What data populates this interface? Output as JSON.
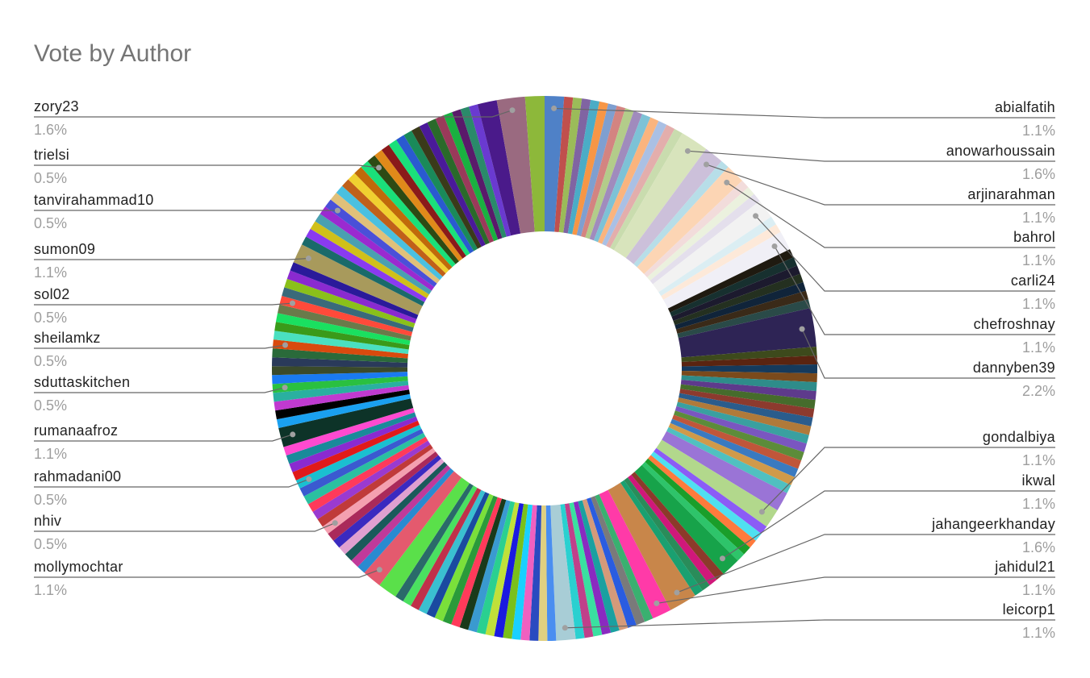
{
  "chart_data": {
    "type": "donut",
    "title": "Vote by Author",
    "categories": [
      "abialfatih",
      null,
      null,
      null,
      null,
      null,
      null,
      null,
      null,
      null,
      null,
      null,
      null,
      null,
      null,
      "anowarhoussain",
      "arjinarahman",
      null,
      "bahrol",
      null,
      null,
      null,
      "carli24",
      null,
      null,
      "chefroshnay",
      null,
      null,
      null,
      null,
      null,
      null,
      null,
      "dannyben39",
      null,
      null,
      null,
      null,
      null,
      null,
      null,
      null,
      null,
      null,
      null,
      null,
      null,
      null,
      null,
      null,
      null,
      null,
      "gondalbiya",
      null,
      null,
      null,
      null,
      null,
      "ikwal",
      null,
      null,
      null,
      null,
      "jahangeerkhanday",
      "jahidul21",
      null,
      null,
      null,
      null,
      null,
      null,
      null,
      null,
      null,
      "leicorp1",
      null,
      null,
      null,
      null,
      null,
      null,
      null,
      null,
      null,
      null,
      null,
      null,
      null,
      null,
      null,
      null,
      null,
      null,
      null,
      null,
      "mollymochtar",
      null,
      null,
      null,
      null,
      null,
      null,
      "nhiv",
      null,
      null,
      null,
      null,
      null,
      "rahmadani00",
      null,
      null,
      null,
      null,
      "rumanaafroz",
      null,
      null,
      null,
      null,
      "sduttaskitchen",
      null,
      null,
      null,
      null,
      "sheilamkz",
      null,
      null,
      null,
      null,
      "sol02",
      null,
      null,
      null,
      null,
      "sumon09",
      null,
      null,
      null,
      null,
      null,
      "tanvirahammad10",
      null,
      null,
      null,
      null,
      null,
      null,
      "trielsi",
      null,
      null,
      null,
      null,
      null,
      null,
      null,
      null,
      null,
      null,
      null,
      null,
      null,
      null,
      "zory23",
      null
    ],
    "values": [
      1.1,
      0.5,
      0.5,
      0.5,
      0.5,
      0.5,
      0.5,
      0.5,
      0.5,
      0.5,
      0.5,
      0.5,
      0.5,
      0.5,
      0.5,
      1.6,
      1.1,
      0.5,
      1.1,
      0.5,
      0.5,
      0.5,
      1.1,
      0.5,
      0.5,
      1.1,
      0.5,
      0.5,
      0.5,
      0.5,
      0.5,
      0.5,
      0.5,
      2.2,
      0.5,
      0.5,
      0.5,
      0.5,
      0.5,
      0.5,
      0.5,
      0.5,
      0.5,
      0.5,
      0.5,
      0.5,
      0.5,
      0.5,
      0.5,
      0.5,
      0.5,
      1.1,
      1.1,
      0.5,
      0.5,
      0.5,
      0.5,
      0.5,
      1.1,
      0.5,
      0.5,
      0.5,
      0.5,
      1.6,
      1.1,
      0.5,
      0.5,
      0.5,
      0.5,
      0.5,
      0.5,
      0.5,
      0.5,
      0.5,
      1.1,
      0.5,
      0.5,
      0.5,
      0.5,
      0.5,
      0.5,
      0.5,
      0.5,
      0.5,
      0.5,
      0.5,
      0.5,
      0.5,
      0.5,
      0.5,
      0.5,
      0.5,
      0.5,
      0.5,
      1.1,
      1.1,
      0.5,
      0.5,
      0.5,
      0.5,
      0.5,
      0.5,
      0.5,
      0.5,
      0.5,
      0.5,
      0.5,
      0.5,
      0.5,
      0.5,
      0.5,
      0.5,
      0.5,
      1.1,
      0.5,
      0.5,
      0.5,
      0.5,
      0.5,
      0.5,
      0.5,
      0.5,
      0.5,
      0.5,
      0.5,
      0.5,
      0.5,
      0.5,
      0.5,
      0.5,
      0.5,
      0.5,
      0.5,
      1.1,
      0.5,
      0.5,
      0.5,
      0.5,
      0.5,
      0.5,
      0.5,
      0.5,
      0.5,
      0.5,
      0.5,
      0.5,
      0.5,
      0.5,
      0.5,
      0.5,
      0.5,
      0.5,
      0.5,
      0.5,
      0.5,
      0.5,
      0.5,
      0.5,
      0.5,
      0.5,
      1.1,
      1.6,
      1.1
    ],
    "value_labels": [
      "1.1%",
      null,
      null,
      null,
      null,
      null,
      null,
      null,
      null,
      null,
      null,
      null,
      null,
      null,
      null,
      "1.6%",
      "1.1%",
      null,
      "1.1%",
      null,
      null,
      null,
      "1.1%",
      null,
      null,
      "1.1%",
      null,
      null,
      null,
      null,
      null,
      null,
      null,
      "2.2%",
      null,
      null,
      null,
      null,
      null,
      null,
      null,
      null,
      null,
      null,
      null,
      null,
      null,
      null,
      null,
      null,
      null,
      null,
      "1.1%",
      null,
      null,
      null,
      null,
      null,
      "1.1%",
      null,
      null,
      null,
      null,
      "1.6%",
      "1.1%",
      null,
      null,
      null,
      null,
      null,
      null,
      null,
      null,
      null,
      "1.1%",
      null,
      null,
      null,
      null,
      null,
      null,
      null,
      null,
      null,
      null,
      null,
      null,
      null,
      null,
      null,
      null,
      null,
      null,
      null,
      null,
      "1.1%",
      null,
      null,
      null,
      null,
      null,
      null,
      "0.5%",
      null,
      null,
      null,
      null,
      null,
      "0.5%",
      null,
      null,
      null,
      null,
      "1.1%",
      null,
      null,
      null,
      null,
      "0.5%",
      null,
      null,
      null,
      null,
      "0.5%",
      null,
      null,
      null,
      null,
      "0.5%",
      null,
      null,
      null,
      null,
      "1.1%",
      null,
      null,
      null,
      null,
      null,
      "0.5%",
      null,
      null,
      null,
      null,
      null,
      null,
      "0.5%",
      null,
      null,
      null,
      null,
      null,
      null,
      null,
      null,
      null,
      null,
      null,
      null,
      null,
      null,
      "1.6%",
      null
    ],
    "colors": [
      "#4f81c7",
      "#c0504d",
      "#9bbb59",
      "#8064a2",
      "#4bacc6",
      "#f79646",
      "#7f9fd0",
      "#d38481",
      "#b3cc8a",
      "#a08bbd",
      "#7dc2d6",
      "#fab47e",
      "#aac0e4",
      "#e3aeac",
      "#c9dcae",
      "#d8e4bc",
      "#ccc0da",
      "#b7dee8",
      "#fcd5b4",
      "#f2dcdb",
      "#ebf1de",
      "#e4dfec",
      "#f2f2f2",
      "#dbeef3",
      "#fde9d9",
      "#f0eff6",
      "#1f1a10",
      "#17302f",
      "#1c1a2e",
      "#243020",
      "#10243a",
      "#3a2a18",
      "#2a4a48",
      "#2e2455",
      "#3d4a1c",
      "#5a2410",
      "#153a5c",
      "#7a4a1c",
      "#2e8c8a",
      "#5e3a8c",
      "#466c2c",
      "#8c3a2e",
      "#2a5c8c",
      "#b07a3a",
      "#3aa0a0",
      "#7a56c0",
      "#5c8c3a",
      "#c0563a",
      "#3a7ac0",
      "#d09a4a",
      "#50c0c0",
      "#9a74d6",
      "#b2d88c",
      "#8b5cf6",
      "#4fe0f0",
      "#ff7a3c",
      "#1a9e2a",
      "#2ec46a",
      "#17a34a",
      "#8c3a2a",
      "#d0187a",
      "#2a8c5a",
      "#1aa070",
      "#c8864a",
      "#ff3aa8",
      "#3ab070",
      "#7a7a7a",
      "#2a5ce0",
      "#d49a7a",
      "#1aa0a0",
      "#8a2ac0",
      "#3ae0a0",
      "#c0408a",
      "#2ad0d0",
      "#a8cdd6",
      "#4a8ef0",
      "#e0d080",
      "#2a4ac0",
      "#f060c0",
      "#1ad0ff",
      "#7ac01a",
      "#1a1ae0",
      "#c0e03a",
      "#2ad090",
      "#3a9ad0",
      "#1a3a1a",
      "#ff3a5a",
      "#2a9a3a",
      "#7ae03a",
      "#1a4aa0",
      "#3ac0d0",
      "#c0304a",
      "#4ae060",
      "#2a6a6a",
      "#5ae04a",
      "#e45a6e",
      "#2a8ad0",
      "#c03a9a",
      "#1a5a5a",
      "#e0a0d0",
      "#3a2ac0",
      "#aa2a5a",
      "#f4a0b0",
      "#c03a3a",
      "#9a3ad0",
      "#ff3a5a",
      "#2ac0a0",
      "#3a5ad0",
      "#1ac0d0",
      "#e01a1a",
      "#8a2ad0",
      "#1a8a9a",
      "#ff4ad0",
      "#0d3328",
      "#1aa0f0",
      "#000000",
      "#c03ad0",
      "#2ab0a0",
      "#2ac040",
      "#1a7af0",
      "#3a4a2a",
      "#2a3a5a",
      "#2a6a3a",
      "#d94a0e",
      "#4ae0c0",
      "#3a9a1a",
      "#1ae060",
      "#6a7a4a",
      "#ff4a3a",
      "#3a6a7a",
      "#8ac01a",
      "#8a2ad0",
      "#2a1a9a",
      "#a89a5c",
      "#1a6a6a",
      "#8a3af0",
      "#d0c01a",
      "#4aa0b0",
      "#9a2ad0",
      "#4a50d8",
      "#e0c07a",
      "#4ac0e0",
      "#c0601a",
      "#f0d030",
      "#c06a0a",
      "#1ae07a",
      "#2d4a14",
      "#e08a1a",
      "#8a1a1a",
      "#1ae07a",
      "#2a5ad0",
      "#1a8a5a",
      "#3a3a1a",
      "#4a1a9a",
      "#2a6a2a",
      "#9a3a5a",
      "#1ab040",
      "#5a1a6a",
      "#2a8a6a",
      "#6a3ad0",
      "#4a1a8a",
      "#9a6a80",
      "#8db83a"
    ]
  }
}
